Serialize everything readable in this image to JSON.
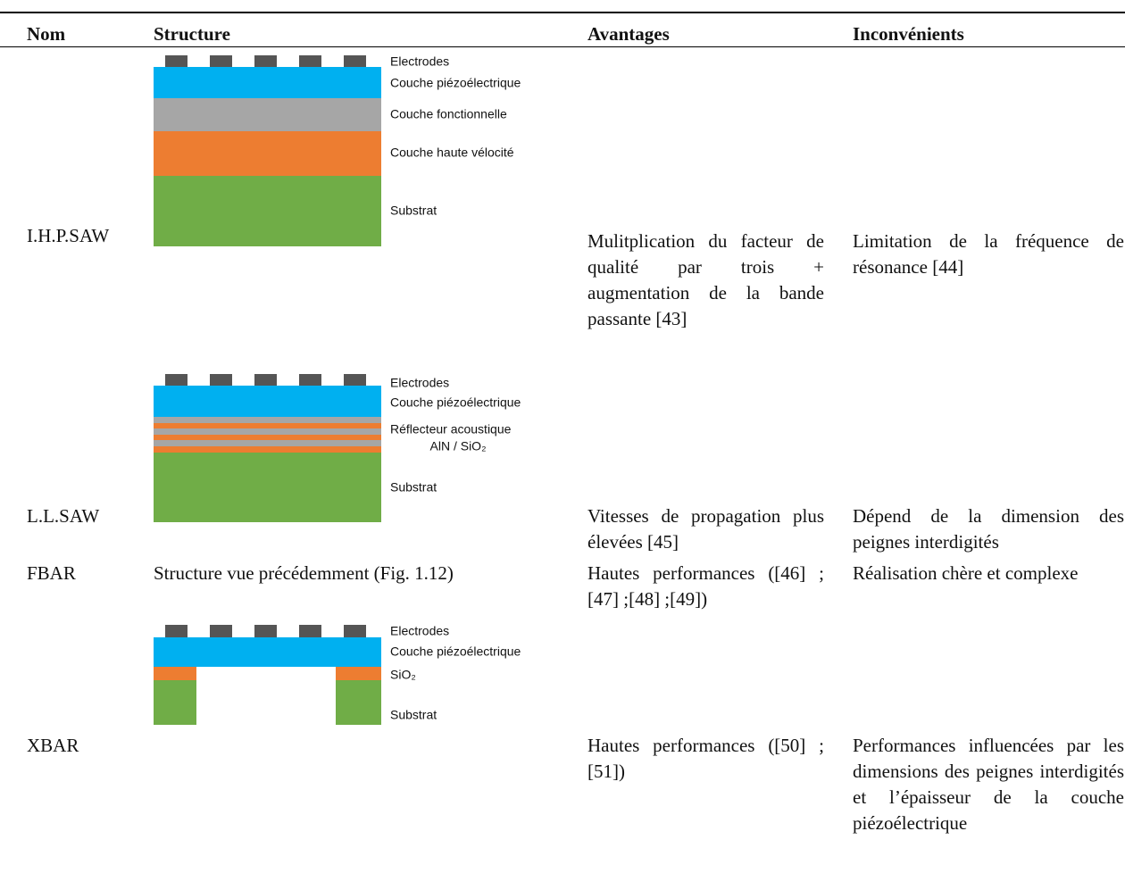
{
  "table": {
    "header": [
      "Nom",
      "Structure",
      "Avantages",
      "Inconvénients"
    ],
    "rows": [
      {
        "name": "I.H.P.SAW",
        "structure": {
          "labels": [
            "Electrodes",
            "Couche piézoélectrique",
            "Couche fonctionnelle",
            "Couche haute vélocité",
            "Substrat"
          ]
        },
        "advantages": "Mulitplication du facteur de qualité par trois + augmentation de la bande passante [43]",
        "disadvantages": "Limitation de la fréquence de résonance [44]"
      },
      {
        "name": "L.L.SAW",
        "structure": {
          "labels": [
            "Electrodes",
            "Couche piézoélectrique",
            "Réflecteur acoustique",
            "AlN / SiO₂",
            "Substrat"
          ]
        },
        "advantages": "Vitesses de propagation plus élevées [45]",
        "disadvantages": "Dépend de la dimension des peignes interdigités"
      },
      {
        "name": "FBAR",
        "structure": {
          "text": "Structure vue précédemment (Fig. 1.12)"
        },
        "advantages": "Hautes performances ([46] ;[47] ;[48] ;[49])",
        "disadvantages": "Réalisation chère et complexe"
      },
      {
        "name": "XBAR",
        "structure": {
          "labels": [
            "Electrodes",
            "Couche piézoélectrique",
            "SiO₂",
            "Substrat"
          ]
        },
        "advantages": "Hautes performances ([50] ;[51])",
        "disadvantages": "Performances influencées par les dimensions des peignes interdigités et l’épaisseur de la couche piézoélectrique"
      }
    ]
  }
}
